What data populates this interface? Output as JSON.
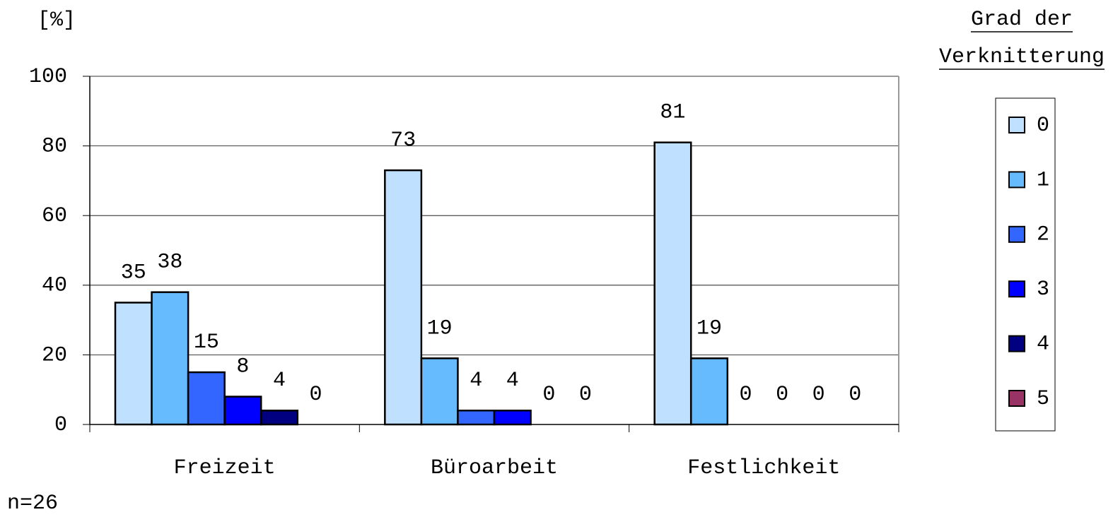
{
  "chart_data": {
    "type": "bar",
    "y_label": "[%]",
    "legend_title": [
      "Grad der",
      "Verknitterung"
    ],
    "note": "n=26",
    "categories": [
      "Freizeit",
      "Büroarbeit",
      "Festlichkeit"
    ],
    "series": [
      {
        "name": "0",
        "color": "#c0e0ff",
        "values": [
          35,
          73,
          81
        ]
      },
      {
        "name": "1",
        "color": "#66bbff",
        "values": [
          38,
          19,
          19
        ]
      },
      {
        "name": "2",
        "color": "#3366ff",
        "values": [
          15,
          4,
          0
        ]
      },
      {
        "name": "3",
        "color": "#0000ff",
        "values": [
          8,
          4,
          0
        ]
      },
      {
        "name": "4",
        "color": "#000080",
        "values": [
          4,
          0,
          0
        ]
      },
      {
        "name": "5",
        "color": "#993366",
        "values": [
          0,
          0,
          0
        ]
      }
    ],
    "ylim": [
      0,
      100
    ],
    "yticks": [
      0,
      20,
      40,
      60,
      80,
      100
    ],
    "grid": true,
    "legend": "right"
  }
}
